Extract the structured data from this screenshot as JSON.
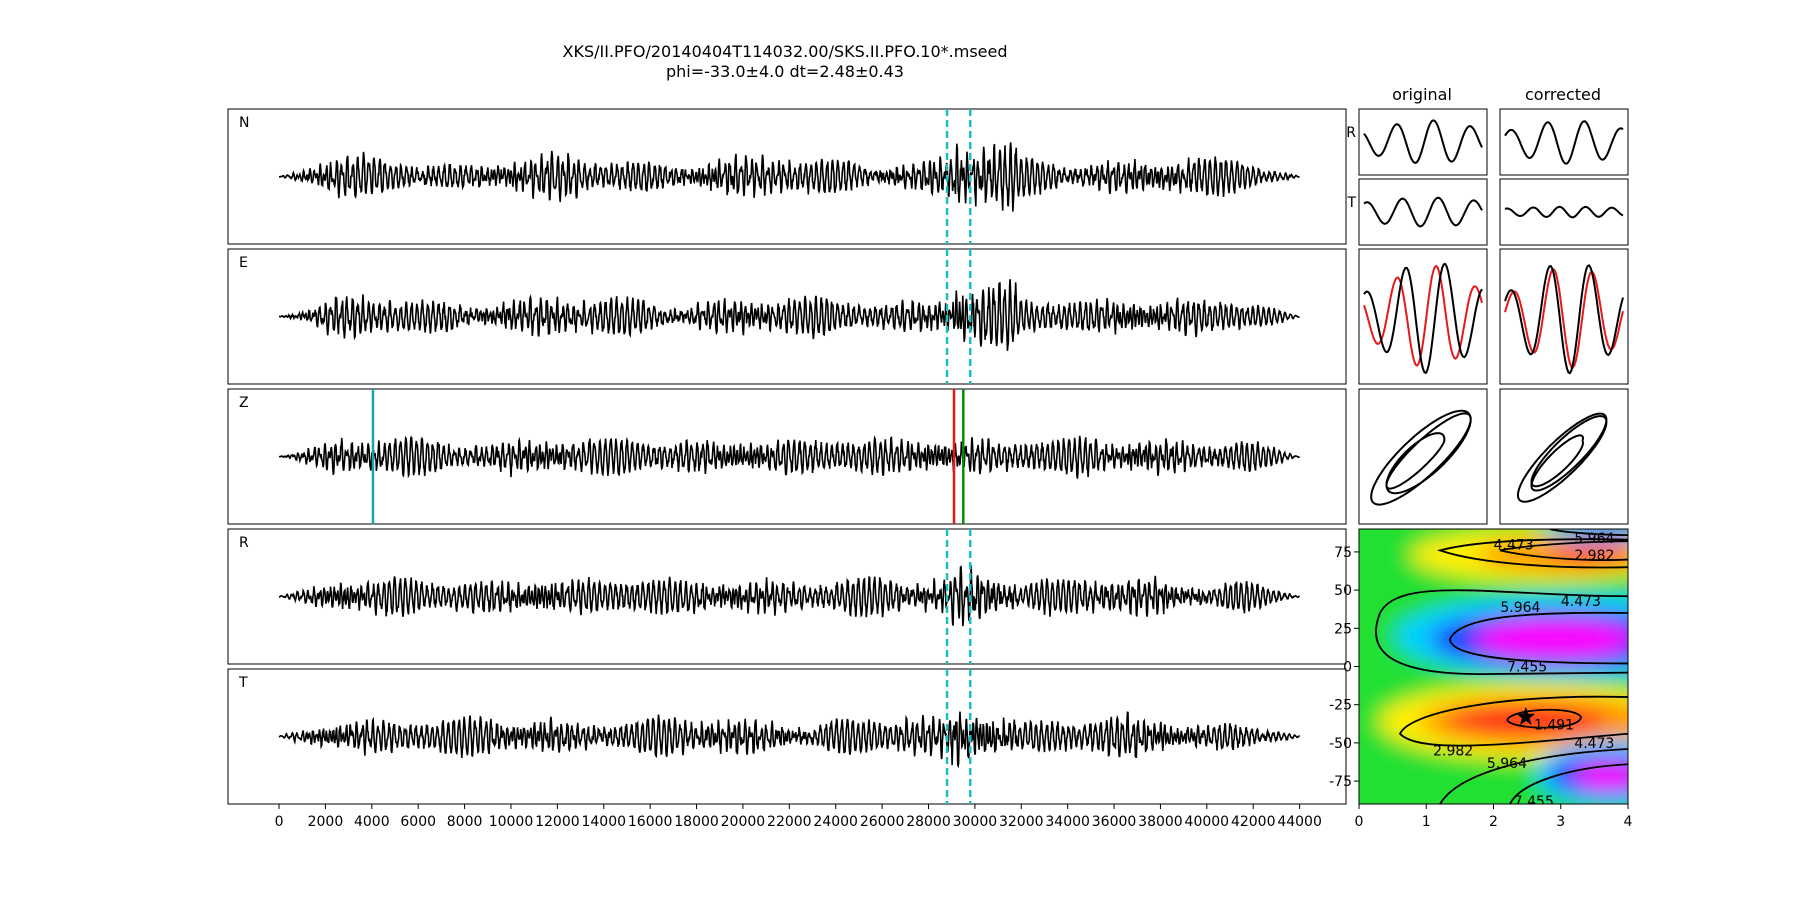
{
  "title": {
    "line1": "XKS/II.PFO/20140404T114032.00/SKS.II.PFO.10*.mseed",
    "line2": "phi=-33.0±4.0 dt=2.48±0.43"
  },
  "columns": {
    "original": "original",
    "corrected": "corrected"
  },
  "colors": {
    "trace": "#000000",
    "window_marker": "#1abfbf",
    "pick_start": "#17a7a7",
    "pick_red": "#e8191b",
    "pick_green": "#0a8a0a",
    "overlay_red": "#e8191b"
  },
  "chart_data": [
    {
      "type": "line",
      "description_free": true,
      "traces": [
        {
          "name": "N"
        },
        {
          "name": "E"
        },
        {
          "name": "Z"
        },
        {
          "name": "R"
        },
        {
          "name": "T"
        }
      ],
      "xlim": [
        -2200,
        46000
      ],
      "xticks": [
        0,
        2000,
        4000,
        6000,
        8000,
        10000,
        12000,
        14000,
        16000,
        18000,
        20000,
        22000,
        24000,
        26000,
        28000,
        30000,
        32000,
        34000,
        36000,
        38000,
        40000,
        42000,
        44000
      ],
      "trace_span": [
        0,
        44000
      ],
      "window_markers": [
        28800,
        29800
      ],
      "z_picks": {
        "start": 4050,
        "red": 29100,
        "green": 29500
      }
    },
    {
      "type": "heatmap",
      "xlim": [
        0,
        4
      ],
      "ylim": [
        -90,
        90
      ],
      "xticks": [
        0,
        1,
        2,
        3,
        4
      ],
      "yticks": [
        75,
        50,
        25,
        0,
        -25,
        -50,
        -75
      ],
      "best_fit": {
        "dt": 2.48,
        "phi": -33.0
      },
      "contour_labels": [
        "1.491",
        "2.982",
        "4.473",
        "5.964",
        "7.455"
      ],
      "contour_label_instances": [
        {
          "text": "4.473",
          "x": 2.3,
          "y": 80
        },
        {
          "text": "5.964",
          "x": 3.5,
          "y": 84
        },
        {
          "text": "2.982",
          "x": 3.5,
          "y": 73
        },
        {
          "text": "5.964",
          "x": 2.4,
          "y": 39
        },
        {
          "text": "4.473",
          "x": 3.3,
          "y": 43
        },
        {
          "text": "7.455",
          "x": 2.5,
          "y": 0
        },
        {
          "text": "1.491",
          "x": 2.9,
          "y": -38
        },
        {
          "text": "2.982",
          "x": 1.4,
          "y": -55
        },
        {
          "text": "5.964",
          "x": 2.2,
          "y": -63
        },
        {
          "text": "4.473",
          "x": 3.5,
          "y": -50
        },
        {
          "text": "7.455",
          "x": 2.6,
          "y": -88
        }
      ]
    }
  ],
  "small_panels": [
    {
      "name": "R",
      "label": "R"
    },
    {
      "name": "T",
      "label": "T"
    },
    {
      "name": "overlay"
    },
    {
      "name": "particle-motion"
    }
  ]
}
